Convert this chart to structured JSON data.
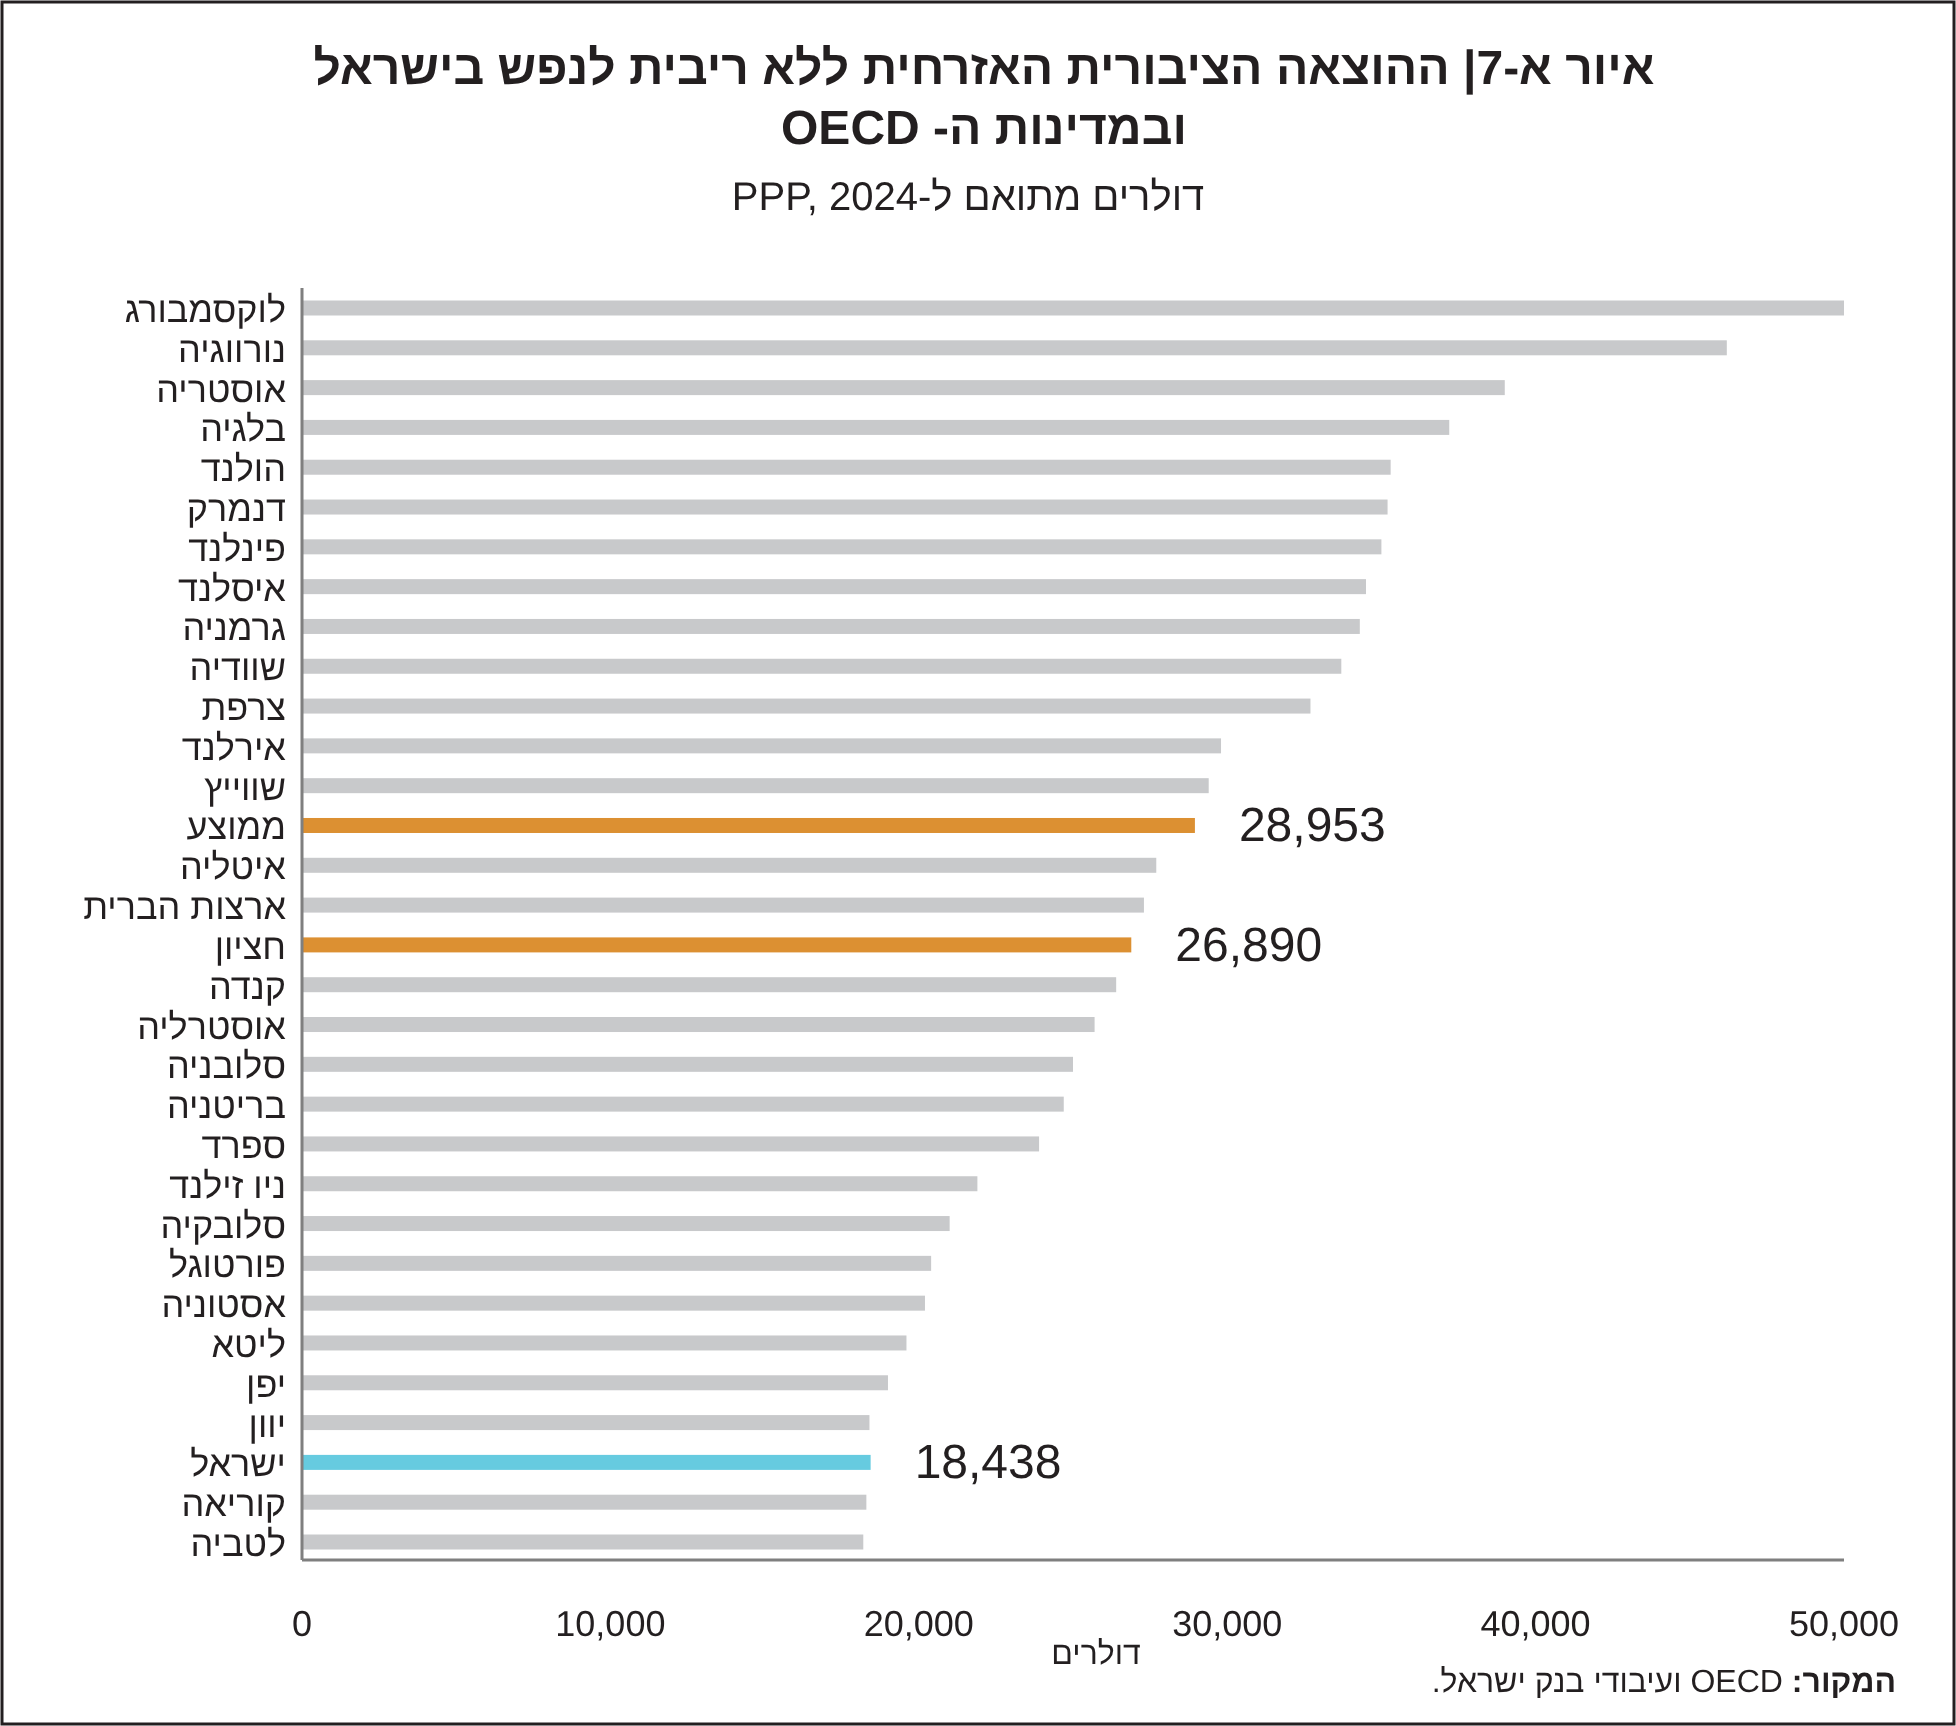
{
  "chart_data": {
    "type": "bar",
    "orientation": "horizontal",
    "title": "איור א-7| ההוצאה הציבורית האזרחית ללא ריבית לנפש בישראל\nובמדינות ה- OECD",
    "subtitle": "דולרים מתואם ל-PPP, 2024",
    "xlabel": "דולרים",
    "annotations": [
      "המקור: OECD ועיבודי בנק ישראל."
    ],
    "categories": [
      "לוקסמבורג",
      "נורווגיה",
      "אוסטריה",
      "בלגיה",
      "הולנד",
      "דנמרק",
      "פינלנד",
      "איסלנד",
      "גרמניה",
      "שוודיה",
      "צרפת",
      "אירלנד",
      "שווייץ",
      "ממוצע",
      "איטליה",
      "ארצות הברית",
      "חציון",
      "קנדה",
      "אוסטרליה",
      "סלובניה",
      "בריטניה",
      "ספרד",
      "ניו זילנד",
      "סלובקיה",
      "פורטוגל",
      "אסטוניה",
      "ליטא",
      "יפן",
      "יוון",
      "ישראל",
      "קוריאה",
      "לטביה"
    ],
    "values": [
      50000,
      46200,
      39000,
      37200,
      35300,
      35200,
      35000,
      34500,
      34300,
      33700,
      32700,
      29800,
      29400,
      28953,
      27700,
      27300,
      26890,
      26400,
      25700,
      25000,
      24700,
      23900,
      21900,
      21000,
      20400,
      20200,
      19600,
      19000,
      18400,
      18438,
      18300,
      18200
    ],
    "colors": [
      "#c8c9cb",
      "#c8c9cb",
      "#c8c9cb",
      "#c8c9cb",
      "#c8c9cb",
      "#c8c9cb",
      "#c8c9cb",
      "#c8c9cb",
      "#c8c9cb",
      "#c8c9cb",
      "#c8c9cb",
      "#c8c9cb",
      "#c8c9cb",
      "#dc9032",
      "#c8c9cb",
      "#c8c9cb",
      "#dc9032",
      "#c8c9cb",
      "#c8c9cb",
      "#c8c9cb",
      "#c8c9cb",
      "#c8c9cb",
      "#c8c9cb",
      "#c8c9cb",
      "#c8c9cb",
      "#c8c9cb",
      "#c8c9cb",
      "#c8c9cb",
      "#c8c9cb",
      "#66cbe0",
      "#c8c9cb",
      "#c8c9cb"
    ],
    "value_labels": [
      null,
      null,
      null,
      null,
      null,
      null,
      null,
      null,
      null,
      null,
      null,
      null,
      null,
      "28,953",
      null,
      null,
      "26,890",
      null,
      null,
      null,
      null,
      null,
      null,
      null,
      null,
      null,
      null,
      null,
      null,
      "18,438",
      null,
      null
    ],
    "xlim": [
      0,
      50000
    ],
    "xticks": [
      {
        "value": 0,
        "label": "0"
      },
      {
        "value": 10000,
        "label": "10,000"
      },
      {
        "value": 20000,
        "label": "20,000"
      },
      {
        "value": 30000,
        "label": "30,000"
      },
      {
        "value": 40000,
        "label": "40,000"
      },
      {
        "value": 50000,
        "label": "50,000"
      }
    ],
    "grid": false
  }
}
